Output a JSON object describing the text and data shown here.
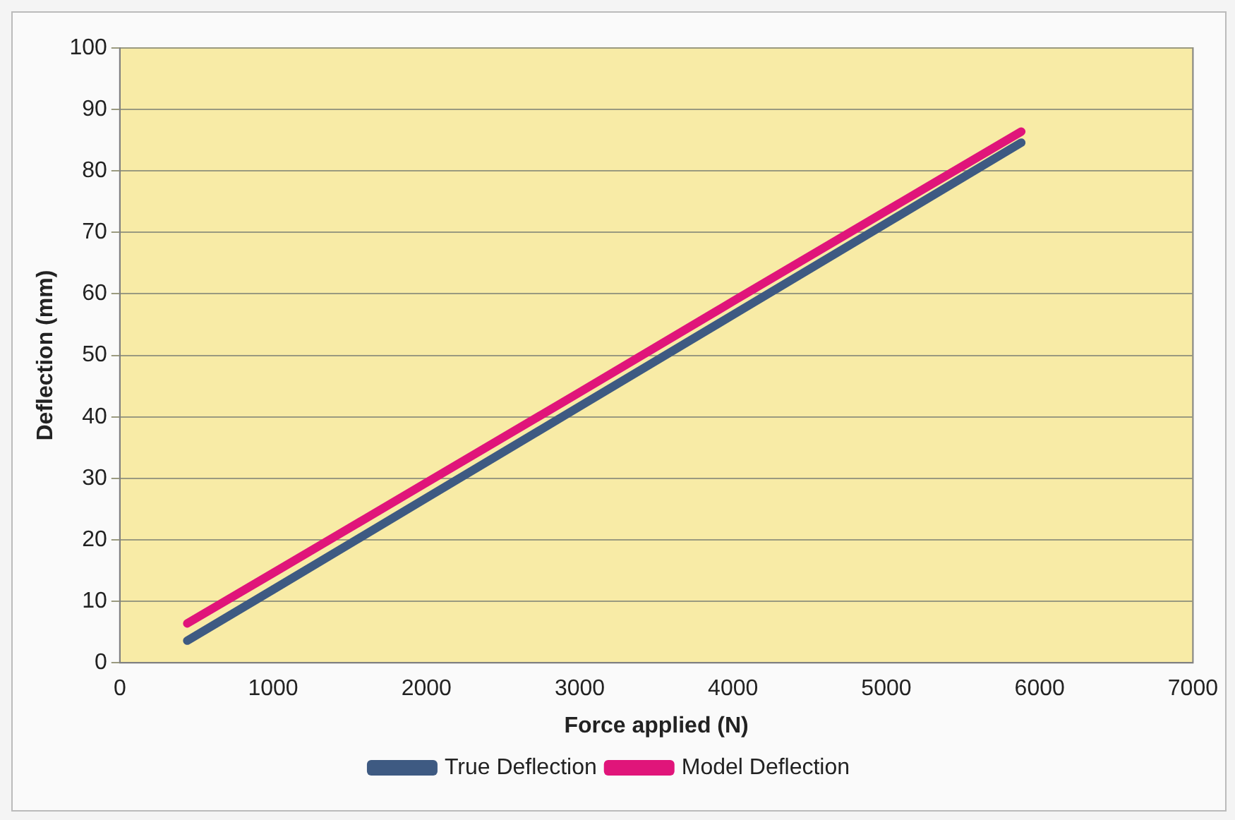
{
  "chart_data": {
    "type": "line",
    "xlabel": "Force applied (N)",
    "ylabel": "Deflection (mm)",
    "x": [
      440,
      1000,
      2000,
      3000,
      4000,
      5000,
      5880
    ],
    "series": [
      {
        "name": "True Deflection",
        "color": "#3e5a82",
        "values": [
          3.6,
          11.9,
          26.8,
          41.7,
          56.6,
          71.5,
          84.6
        ]
      },
      {
        "name": "Model Deflection",
        "color": "#e0157a",
        "values": [
          6.4,
          14.6,
          29.3,
          44.0,
          58.8,
          73.5,
          86.4
        ]
      }
    ],
    "xlim": [
      0,
      7000
    ],
    "xticks": [
      0,
      1000,
      2000,
      3000,
      4000,
      5000,
      6000,
      7000
    ],
    "ylim": [
      0,
      100
    ],
    "yticks": [
      0,
      10,
      20,
      30,
      40,
      50,
      60,
      70,
      80,
      90,
      100
    ],
    "grid": "y",
    "legend": "bottom",
    "marker": "none",
    "line_style": "solid"
  }
}
